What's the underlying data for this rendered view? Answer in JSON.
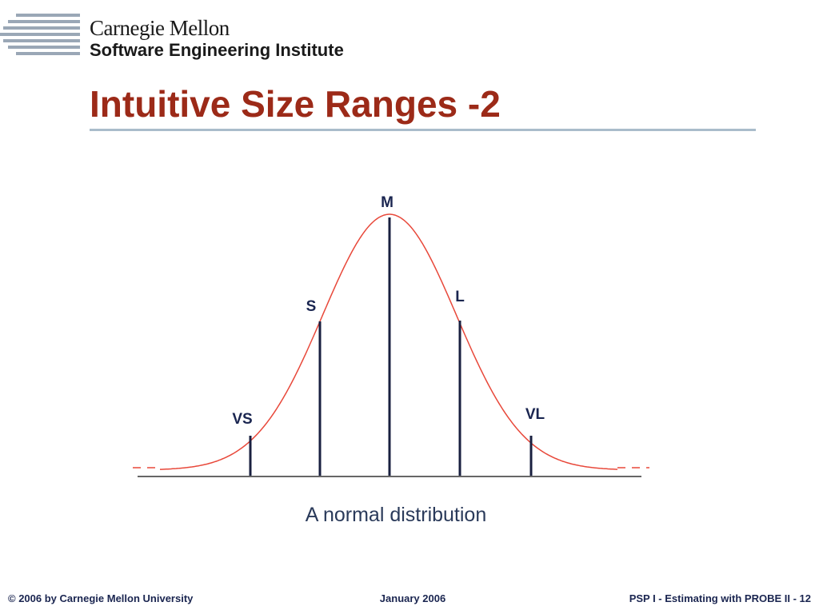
{
  "header": {
    "org": "Carnegie Mellon",
    "institute": "Software Engineering Institute"
  },
  "title": "Intuitive Size Ranges -2",
  "labels": {
    "very_small": "VS",
    "small": "S",
    "medium": "M",
    "large": "L",
    "very_large": "VL"
  },
  "caption": "A normal distribution",
  "footer": {
    "left": "© 2006 by Carnegie Mellon University",
    "center": "January 2006",
    "right": "PSP I - Estimating with PROBE II - 12"
  }
}
